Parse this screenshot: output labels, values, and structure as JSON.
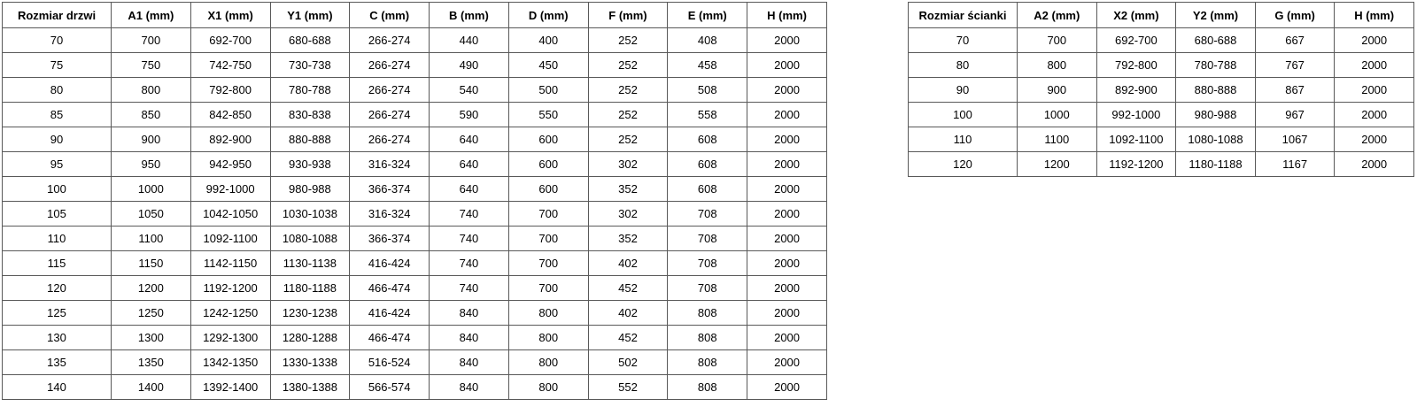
{
  "page": {
    "description": "Shower door and wall panel dimension specification tables"
  },
  "colors": {
    "border": "#595959",
    "text": "#000000",
    "background": "#ffffff"
  },
  "tables": {
    "door": {
      "title": "Rozmiar drzwi",
      "columns": [
        "Rozmiar drzwi",
        "A1 (mm)",
        "X1 (mm)",
        "Y1 (mm)",
        "C (mm)",
        "B (mm)",
        "D (mm)",
        "F (mm)",
        "E (mm)",
        "H (mm)"
      ],
      "rows": [
        [
          "70",
          "700",
          "692-700",
          "680-688",
          "266-274",
          "440",
          "400",
          "252",
          "408",
          "2000"
        ],
        [
          "75",
          "750",
          "742-750",
          "730-738",
          "266-274",
          "490",
          "450",
          "252",
          "458",
          "2000"
        ],
        [
          "80",
          "800",
          "792-800",
          "780-788",
          "266-274",
          "540",
          "500",
          "252",
          "508",
          "2000"
        ],
        [
          "85",
          "850",
          "842-850",
          "830-838",
          "266-274",
          "590",
          "550",
          "252",
          "558",
          "2000"
        ],
        [
          "90",
          "900",
          "892-900",
          "880-888",
          "266-274",
          "640",
          "600",
          "252",
          "608",
          "2000"
        ],
        [
          "95",
          "950",
          "942-950",
          "930-938",
          "316-324",
          "640",
          "600",
          "302",
          "608",
          "2000"
        ],
        [
          "100",
          "1000",
          "992-1000",
          "980-988",
          "366-374",
          "640",
          "600",
          "352",
          "608",
          "2000"
        ],
        [
          "105",
          "1050",
          "1042-1050",
          "1030-1038",
          "316-324",
          "740",
          "700",
          "302",
          "708",
          "2000"
        ],
        [
          "110",
          "1100",
          "1092-1100",
          "1080-1088",
          "366-374",
          "740",
          "700",
          "352",
          "708",
          "2000"
        ],
        [
          "115",
          "1150",
          "1142-1150",
          "1130-1138",
          "416-424",
          "740",
          "700",
          "402",
          "708",
          "2000"
        ],
        [
          "120",
          "1200",
          "1192-1200",
          "1180-1188",
          "466-474",
          "740",
          "700",
          "452",
          "708",
          "2000"
        ],
        [
          "125",
          "1250",
          "1242-1250",
          "1230-1238",
          "416-424",
          "840",
          "800",
          "402",
          "808",
          "2000"
        ],
        [
          "130",
          "1300",
          "1292-1300",
          "1280-1288",
          "466-474",
          "840",
          "800",
          "452",
          "808",
          "2000"
        ],
        [
          "135",
          "1350",
          "1342-1350",
          "1330-1338",
          "516-524",
          "840",
          "800",
          "502",
          "808",
          "2000"
        ],
        [
          "140",
          "1400",
          "1392-1400",
          "1380-1388",
          "566-574",
          "840",
          "800",
          "552",
          "808",
          "2000"
        ]
      ]
    },
    "wall": {
      "title": "Rozmiar ścianki",
      "columns": [
        "Rozmiar ścianki",
        "A2 (mm)",
        "X2 (mm)",
        "Y2 (mm)",
        "G (mm)",
        "H (mm)"
      ],
      "rows": [
        [
          "70",
          "700",
          "692-700",
          "680-688",
          "667",
          "2000"
        ],
        [
          "80",
          "800",
          "792-800",
          "780-788",
          "767",
          "2000"
        ],
        [
          "90",
          "900",
          "892-900",
          "880-888",
          "867",
          "2000"
        ],
        [
          "100",
          "1000",
          "992-1000",
          "980-988",
          "967",
          "2000"
        ],
        [
          "110",
          "1100",
          "1092-1100",
          "1080-1088",
          "1067",
          "2000"
        ],
        [
          "120",
          "1200",
          "1192-1200",
          "1180-1188",
          "1167",
          "2000"
        ]
      ]
    }
  }
}
